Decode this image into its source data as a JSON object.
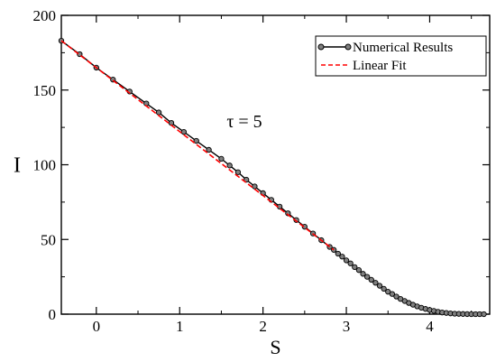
{
  "chart_data": {
    "type": "line",
    "title": "",
    "xlabel": "S",
    "ylabel": "I",
    "annotation": "τ = 5",
    "xlim": [
      -0.42,
      4.72
    ],
    "ylim": [
      0,
      200
    ],
    "x_ticks": [
      0,
      1,
      2,
      3,
      4
    ],
    "x_tick_labels": [
      "0",
      "1",
      "2",
      "3",
      "4"
    ],
    "y_ticks": [
      0,
      50,
      100,
      150,
      200
    ],
    "y_tick_labels": [
      "0",
      "50",
      "100",
      "150",
      "200"
    ],
    "grid": false,
    "legend_position": "top-right",
    "series": [
      {
        "name": "Numerical Results",
        "color": "#000000",
        "marker_fill": "#808080",
        "style": "solid-with-circle-markers",
        "x": [
          -0.42,
          -0.2,
          0.0,
          0.2,
          0.4,
          0.6,
          0.75,
          0.9,
          1.05,
          1.2,
          1.35,
          1.5,
          1.6,
          1.7,
          1.8,
          1.9,
          2.0,
          2.1,
          2.2,
          2.3,
          2.4,
          2.5,
          2.6,
          2.7,
          2.8,
          2.85,
          2.9,
          2.95,
          3.0,
          3.05,
          3.1,
          3.15,
          3.2,
          3.25,
          3.3,
          3.35,
          3.4,
          3.45,
          3.5,
          3.55,
          3.6,
          3.65,
          3.7,
          3.75,
          3.8,
          3.85,
          3.9,
          3.95,
          4.0,
          4.05,
          4.1,
          4.15,
          4.2,
          4.25,
          4.3,
          4.35,
          4.4,
          4.45,
          4.5,
          4.55,
          4.6,
          4.65
        ],
        "y": [
          183,
          174,
          165,
          157,
          149,
          141,
          135,
          128,
          122,
          116,
          110,
          104,
          99.5,
          95,
          90,
          85.5,
          81,
          76.5,
          72,
          67.5,
          63,
          58.5,
          54,
          49.5,
          45,
          43,
          40.5,
          38.5,
          36,
          34,
          31.5,
          29.5,
          27,
          25,
          23,
          21,
          19,
          17,
          15,
          13.5,
          11.8,
          10.2,
          8.8,
          7.5,
          6.3,
          5.2,
          4.3,
          3.5,
          2.8,
          2.2,
          1.6,
          1.1,
          0.8,
          0.5,
          0.3,
          0.2,
          0.1,
          0.05,
          0.0,
          0.0,
          0.0,
          0.0
        ]
      },
      {
        "name": "Linear Fit",
        "color": "#ff0000",
        "style": "dashed",
        "x": [
          -0.42,
          2.85
        ],
        "y": [
          183,
          43.0
        ]
      }
    ]
  }
}
